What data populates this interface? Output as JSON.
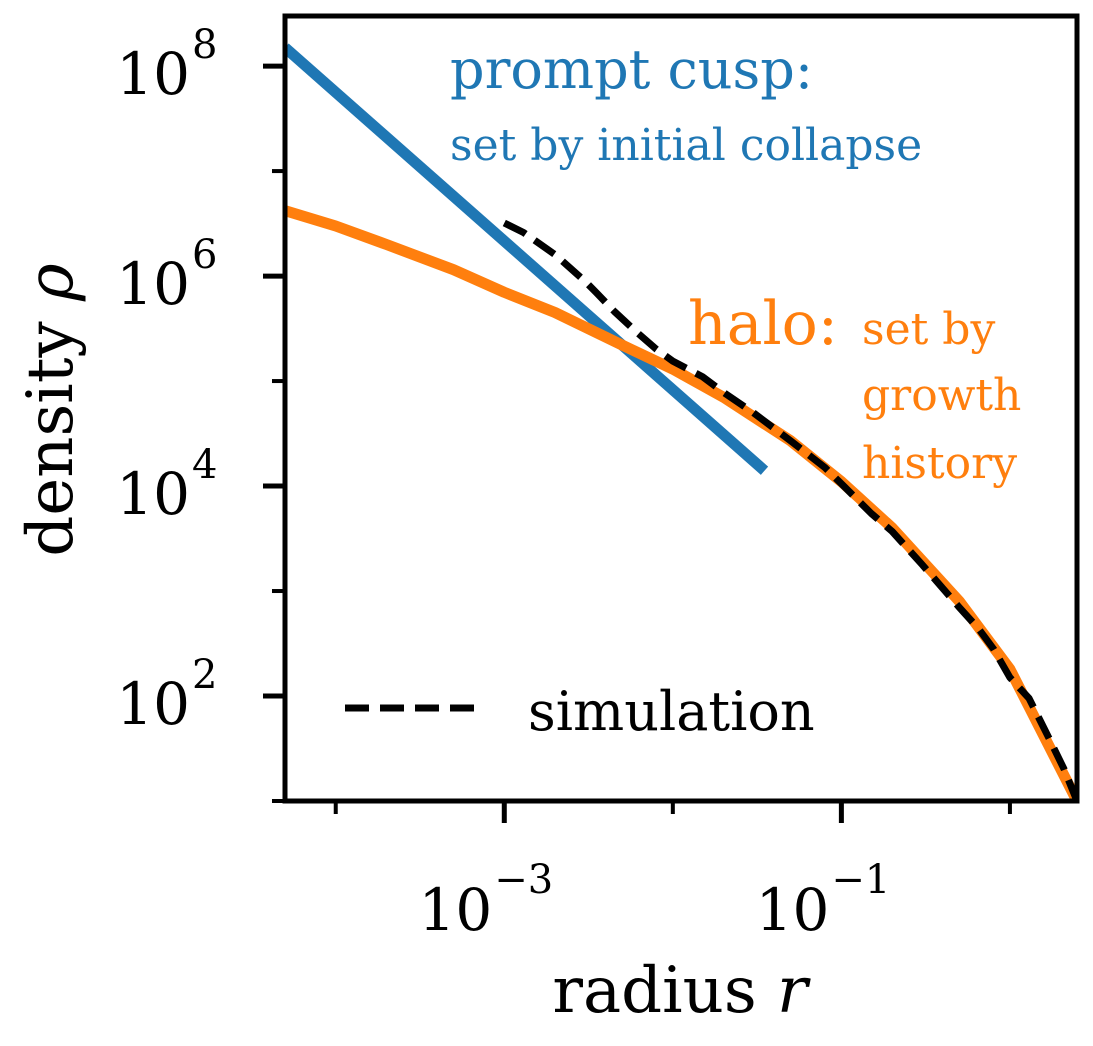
{
  "chart_data": {
    "type": "line",
    "xlabel": "radius",
    "xlabel_symbol": "r",
    "ylabel": "density",
    "ylabel_symbol": "ρ",
    "x_scale": "log",
    "y_scale": "log",
    "xlim": [
      5e-05,
      2.5
    ],
    "ylim": [
      10,
      300000000
    ],
    "x_major_ticks": [
      0.001,
      0.1
    ],
    "x_minor_ticks": [
      0.0001,
      0.01,
      1
    ],
    "y_major_ticks": [
      100,
      10000,
      1000000,
      100000000
    ],
    "y_minor_ticks": [
      10,
      1000,
      100000,
      10000000
    ],
    "x_tick_labels": [
      {
        "base": "10",
        "exp": "−3",
        "value": 0.001
      },
      {
        "base": "10",
        "exp": "−1",
        "value": 0.1
      }
    ],
    "y_tick_labels": [
      {
        "base": "10",
        "exp": "2",
        "value": 100
      },
      {
        "base": "10",
        "exp": "4",
        "value": 10000
      },
      {
        "base": "10",
        "exp": "6",
        "value": 1000000
      },
      {
        "base": "10",
        "exp": "8",
        "value": 100000000
      }
    ],
    "grid": false,
    "legend_position": "bottom-left",
    "series": [
      {
        "key": "prompt-cusp",
        "color": "#1f77b4",
        "style": "solid",
        "points": [
          [
            5e-05,
            150000000
          ],
          [
            0.035,
            14000
          ]
        ]
      },
      {
        "key": "halo",
        "color": "#ff7f0e",
        "style": "solid",
        "points": [
          [
            5e-05,
            4200000
          ],
          [
            0.0001,
            3000000
          ],
          [
            0.0002,
            2000000
          ],
          [
            0.0005,
            1150000
          ],
          [
            0.001,
            700000
          ],
          [
            0.002,
            450000
          ],
          [
            0.005,
            220000
          ],
          [
            0.01,
            130000
          ],
          [
            0.02,
            70000
          ],
          [
            0.05,
            27000
          ],
          [
            0.1,
            11000
          ],
          [
            0.2,
            4000
          ],
          [
            0.5,
            800
          ],
          [
            1,
            180
          ],
          [
            2.5,
            10
          ]
        ]
      },
      {
        "key": "simulation",
        "name": "simulation",
        "color": "#000000",
        "style": "dashed",
        "points": [
          [
            0.001,
            3200000
          ],
          [
            0.0013,
            2600000
          ],
          [
            0.002,
            1600000
          ],
          [
            0.003,
            900000
          ],
          [
            0.0035,
            700000
          ],
          [
            0.0045,
            460000
          ],
          [
            0.006,
            300000
          ],
          [
            0.008,
            200000
          ],
          [
            0.01,
            155000
          ],
          [
            0.015,
            110000
          ],
          [
            0.02,
            78000
          ],
          [
            0.03,
            50000
          ],
          [
            0.05,
            27000
          ],
          [
            0.08,
            15000
          ],
          [
            0.1,
            10500
          ],
          [
            0.15,
            5500
          ],
          [
            0.2,
            3700
          ],
          [
            0.3,
            1800
          ],
          [
            0.5,
            700
          ],
          [
            0.65,
            440
          ],
          [
            0.8,
            280
          ],
          [
            1,
            150
          ],
          [
            1.3,
            95
          ],
          [
            1.7,
            40
          ],
          [
            2.1,
            20
          ],
          [
            2.5,
            10
          ]
        ]
      }
    ],
    "annotations": {
      "cusp_title": "prompt cusp:",
      "cusp_subtitle": "set by initial collapse",
      "halo_title": "halo:",
      "halo_line1": "set by",
      "halo_line2": "growth",
      "halo_line3": "history"
    },
    "legend": [
      {
        "label": "simulation",
        "color": "#000000",
        "style": "dashed"
      }
    ]
  }
}
